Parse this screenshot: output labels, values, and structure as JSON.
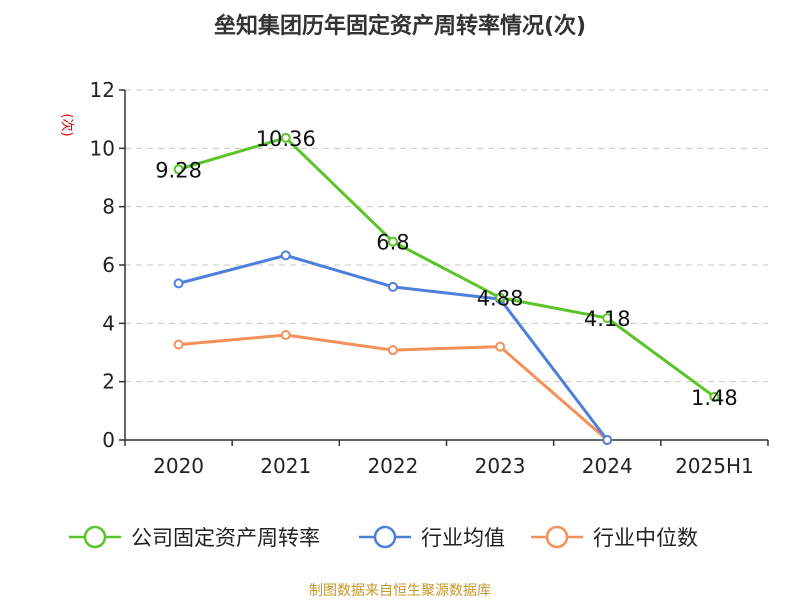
{
  "chart_data": {
    "type": "line",
    "title": "垒知集团历年固定资产周转率情况(次)",
    "ylabel": "(次)",
    "xlabel": "",
    "categories": [
      "2020",
      "2021",
      "2022",
      "2023",
      "2024",
      "2025H1"
    ],
    "ylim": [
      0,
      12
    ],
    "yticks": [
      0,
      2,
      4,
      6,
      8,
      10,
      12
    ],
    "grid": true,
    "legend_position": "bottom",
    "series": [
      {
        "name": "公司固定资产周转率",
        "color": "#5bc429",
        "values": [
          9.28,
          10.36,
          6.8,
          4.88,
          4.18,
          1.48
        ],
        "labels": [
          "9.28",
          "10.36",
          "6.8",
          "4.88",
          "4.18",
          "1.48"
        ]
      },
      {
        "name": "行业均值",
        "color": "#4d7fdb",
        "values": [
          5.37,
          6.33,
          5.25,
          4.83,
          0,
          null
        ],
        "labels": null
      },
      {
        "name": "行业中位数",
        "color": "#f4905a",
        "values": [
          3.27,
          3.6,
          3.08,
          3.2,
          0,
          null
        ],
        "labels": null
      }
    ],
    "source": "制图数据来自恒生聚源数据库"
  }
}
